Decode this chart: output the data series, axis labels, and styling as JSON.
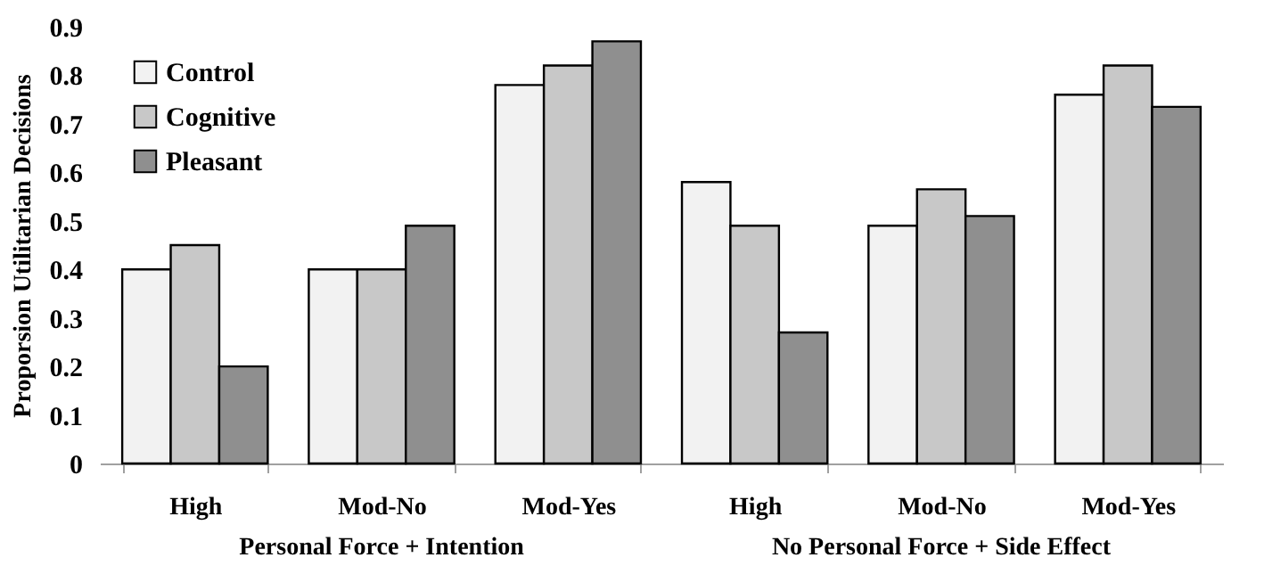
{
  "chart_data": {
    "type": "bar",
    "ylabel": "Proporsion Utilitarian Decisions",
    "categories": [
      "High",
      "Mod-No",
      "Mod-Yes",
      "High",
      "Mod-No",
      "Mod-Yes"
    ],
    "series": [
      {
        "name": "Control",
        "color": "#f2f2f2",
        "values": [
          0.4,
          0.4,
          0.78,
          0.58,
          0.49,
          0.76
        ]
      },
      {
        "name": "Cognitive",
        "color": "#c8c8c8",
        "values": [
          0.45,
          0.4,
          0.82,
          0.49,
          0.565,
          0.82
        ]
      },
      {
        "name": "Pleasant",
        "color": "#8f8f8f",
        "values": [
          0.2,
          0.49,
          0.87,
          0.27,
          0.51,
          0.735
        ]
      }
    ],
    "annotations": [
      "Personal  Force + Intention",
      "No Personal Force + Side Effect"
    ],
    "ylim": [
      0,
      0.9
    ],
    "yticks": [
      0,
      0.1,
      0.2,
      0.3,
      0.4,
      0.5,
      0.6,
      0.7,
      0.8,
      0.9
    ],
    "grid": false,
    "legend": "top left"
  }
}
